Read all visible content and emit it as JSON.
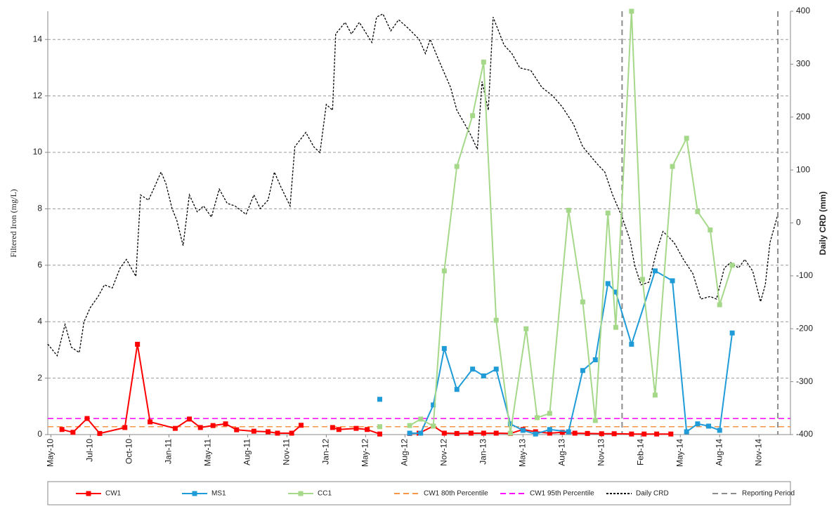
{
  "chart_data": {
    "type": "line",
    "y_label": "Filtered Iron (mg/L)",
    "y2_label": "Daily CRD (mm)",
    "xlim": [
      -0.2,
      47
    ],
    "xticks": [
      {
        "value": 0,
        "label": "May-10"
      },
      {
        "value": 2.5,
        "label": "Jul-10"
      },
      {
        "value": 5,
        "label": "Oct-10"
      },
      {
        "value": 7.5,
        "label": "Jan-11"
      },
      {
        "value": 10,
        "label": "May-11"
      },
      {
        "value": 12.5,
        "label": "Aug-11"
      },
      {
        "value": 15,
        "label": "Nov-11"
      },
      {
        "value": 17.5,
        "label": "Jan-12"
      },
      {
        "value": 20,
        "label": "May-12"
      },
      {
        "value": 22.5,
        "label": "Aug-12"
      },
      {
        "value": 25,
        "label": "Nov-12"
      },
      {
        "value": 27.5,
        "label": "Jan-13"
      },
      {
        "value": 30,
        "label": "May-13"
      },
      {
        "value": 32.5,
        "label": "Aug-13"
      },
      {
        "value": 35,
        "label": "Nov-13"
      },
      {
        "value": 37.5,
        "label": "Feb-14"
      },
      {
        "value": 40,
        "label": "May-14"
      },
      {
        "value": 42.5,
        "label": "Aug-14"
      },
      {
        "value": 45,
        "label": "Nov-14"
      }
    ],
    "ylim": [
      0,
      15
    ],
    "yticks": [
      0,
      2,
      4,
      6,
      8,
      10,
      12,
      14
    ],
    "y2lim": [
      -400,
      400
    ],
    "y2ticks": [
      -400,
      -300,
      -200,
      -100,
      0,
      100,
      200,
      300,
      400
    ],
    "grid": true,
    "series": [
      {
        "name": "CW1",
        "kind": "line",
        "color": "#ff0000",
        "marker": "square",
        "x": [
          0.7,
          1.4,
          2.3,
          3.1,
          4.7,
          5.5,
          6.3,
          7.9,
          8.8,
          9.5,
          10.3,
          11.1,
          11.8,
          12.9,
          13.8,
          14.4,
          15.3,
          15.9,
          null,
          17.9,
          18.3,
          19.4,
          20.1,
          20.9,
          null,
          22.8,
          23.4,
          24.3,
          25.0,
          25.8,
          26.7,
          27.5,
          28.3,
          29.2,
          30.0,
          30.8,
          31.7,
          32.5,
          33.3,
          34.1,
          35.0,
          35.8,
          36.9,
          37.7,
          38.5,
          39.4
        ],
        "values": [
          0.18,
          0.08,
          0.57,
          0.04,
          0.25,
          3.2,
          0.45,
          0.22,
          0.55,
          0.25,
          0.32,
          0.38,
          0.17,
          0.12,
          0.1,
          0.05,
          0.05,
          0.33,
          null,
          0.25,
          0.18,
          0.22,
          0.18,
          0.02,
          null,
          0.04,
          0.05,
          0.3,
          0.05,
          0.04,
          0.05,
          0.05,
          0.05,
          0.04,
          0.18,
          0.1,
          0.05,
          0.08,
          0.05,
          0.04,
          0.03,
          0.03,
          0.02,
          0.02,
          0.02,
          0.02
        ]
      },
      {
        "name": "MS1",
        "kind": "line",
        "color": "#1f9bd7",
        "marker": "square",
        "x": [
          20.9,
          null,
          22.8,
          23.5,
          24.3,
          25.0,
          25.8,
          26.8,
          27.5,
          28.3,
          29.2,
          30.0,
          30.8,
          31.7,
          32.9,
          33.8,
          34.6,
          35.4,
          35.9,
          36.9,
          38.4,
          39.5,
          40.4,
          41.1,
          41.8,
          42.5,
          43.3
        ],
        "values": [
          1.25,
          null,
          0.05,
          0.05,
          1.05,
          3.05,
          1.6,
          2.32,
          2.08,
          2.32,
          0.38,
          0.15,
          0.02,
          0.18,
          0.1,
          2.27,
          2.65,
          5.35,
          5.05,
          3.2,
          5.8,
          5.45,
          0.1,
          0.38,
          0.3,
          0.15,
          3.6
        ]
      },
      {
        "name": "CC1",
        "kind": "line",
        "color": "#a6d88a",
        "marker": "square",
        "x": [
          20.9,
          null,
          22.8,
          23.5,
          24.3,
          25.0,
          25.8,
          26.8,
          27.5,
          28.3,
          29.2,
          30.2,
          30.9,
          31.7,
          32.9,
          33.8,
          34.6,
          35.4,
          35.9,
          36.9,
          37.6,
          38.4,
          39.5,
          40.4,
          41.1,
          41.9,
          42.5,
          43.3
        ],
        "values": [
          0.28,
          null,
          0.32,
          0.55,
          0.3,
          5.8,
          9.5,
          11.3,
          13.2,
          4.05,
          0.05,
          3.75,
          0.6,
          0.75,
          7.95,
          4.7,
          0.5,
          7.85,
          3.8,
          15,
          5.5,
          1.4,
          9.5,
          10.5,
          7.9,
          7.25,
          4.6,
          6.0
        ]
      },
      {
        "name": "CW1 80th Percentile",
        "kind": "hline",
        "color": "#f79646",
        "style": "dashed",
        "value": 0.28
      },
      {
        "name": "CW1 95th Percentile",
        "kind": "hline",
        "color": "#ff00ff",
        "style": "dashed",
        "value": 0.57
      },
      {
        "name": "Daily CRD",
        "kind": "line",
        "axis": "y2",
        "color": "#000000",
        "style": "dotted",
        "x": [
          -0.2,
          0.4,
          0.9,
          1.3,
          1.8,
          2.1,
          2.5,
          3.0,
          3.4,
          3.9,
          4.4,
          4.8,
          5.4,
          5.7,
          6.2,
          6.6,
          7.0,
          7.3,
          7.7,
          8.0,
          8.4,
          8.8,
          9.3,
          9.7,
          10.2,
          10.7,
          11.2,
          11.7,
          12.4,
          12.9,
          13.3,
          13.8,
          14.2,
          14.6,
          15.2,
          15.5,
          16.2,
          16.7,
          17.1,
          17.5,
          17.9,
          18.1,
          18.7,
          19.1,
          19.6,
          20.4,
          20.7,
          21.1,
          21.6,
          22.1,
          22.7,
          23.4,
          23.8,
          24.1,
          24.7,
          25.4,
          25.8,
          26.3,
          26.7,
          27.1,
          27.4,
          27.8,
          28.1,
          28.8,
          29.3,
          29.8,
          30.5,
          31.2,
          31.9,
          32.5,
          33.2,
          33.8,
          34.7,
          35.2,
          35.7,
          36.3,
          36.8,
          37.1,
          37.5,
          38.0,
          38.5,
          38.9,
          39.6,
          40.2,
          40.8,
          41.3,
          41.9,
          42.3,
          42.8,
          43.2,
          43.7,
          44.1,
          44.6,
          45.1,
          45.4,
          45.7,
          46.2
        ],
        "values": [
          -229,
          -251,
          -192,
          -235,
          -245,
          -187,
          -160,
          -139,
          -117,
          -123,
          -85,
          -69,
          -101,
          53,
          43,
          69,
          96,
          75,
          27,
          5,
          -43,
          53,
          21,
          32,
          11,
          64,
          37,
          32,
          16,
          53,
          27,
          43,
          96,
          69,
          32,
          144,
          171,
          144,
          133,
          224,
          213,
          357,
          379,
          357,
          379,
          341,
          389,
          395,
          363,
          384,
          368,
          347,
          320,
          347,
          304,
          256,
          213,
          187,
          165,
          139,
          267,
          213,
          389,
          336,
          320,
          293,
          288,
          256,
          240,
          219,
          187,
          144,
          112,
          96,
          53,
          11,
          -32,
          -80,
          -117,
          -112,
          -53,
          -16,
          -37,
          -69,
          -96,
          -144,
          -139,
          -144,
          -85,
          -75,
          -85,
          -69,
          -91,
          -149,
          -117,
          -37,
          16
        ]
      },
      {
        "name": "Reporting Period",
        "kind": "vline",
        "color": "#8c8c8c",
        "style": "dashed",
        "x": [
          36.3,
          46.2
        ]
      }
    ]
  }
}
